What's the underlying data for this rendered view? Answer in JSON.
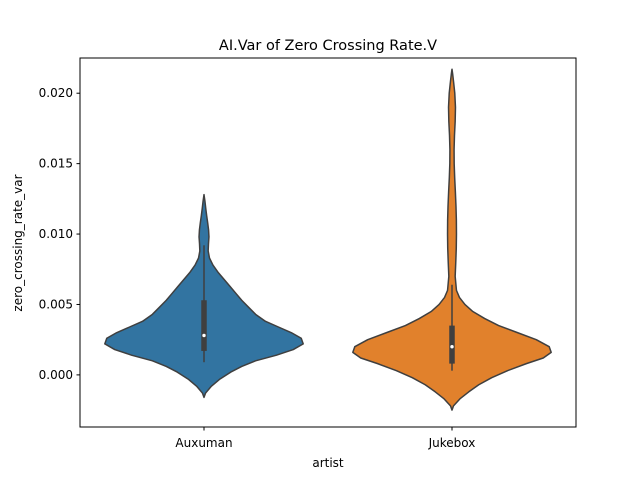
{
  "chart_data": {
    "type": "violin",
    "title": "AI.Var of Zero Crossing Rate.V",
    "xlabel": "artist",
    "ylabel": "zero_crossing_rate_var",
    "categories": [
      "Auxuman",
      "Jukebox"
    ],
    "ylim": [
      -0.0037,
      0.0225
    ],
    "yticks": [
      "0.000",
      "0.005",
      "0.010",
      "0.015",
      "0.020"
    ],
    "grid": false,
    "series": [
      {
        "category": "Auxuman",
        "color": "#3274a1",
        "min": 0.0009,
        "q1": 0.0017,
        "median": 0.0028,
        "q3": 0.0053,
        "max": 0.0092,
        "density": [
          [
            -0.0016,
            0.0
          ],
          [
            -0.0013,
            0.015
          ],
          [
            -0.0008,
            0.075
          ],
          [
            -0.0003,
            0.16
          ],
          [
            0.0002,
            0.27
          ],
          [
            0.0006,
            0.38
          ],
          [
            0.001,
            0.52
          ],
          [
            0.0014,
            0.73
          ],
          [
            0.0018,
            0.9
          ],
          [
            0.0022,
            1.0
          ],
          [
            0.0026,
            0.98
          ],
          [
            0.003,
            0.88
          ],
          [
            0.0034,
            0.75
          ],
          [
            0.0038,
            0.62
          ],
          [
            0.0043,
            0.52
          ],
          [
            0.0048,
            0.45
          ],
          [
            0.0053,
            0.38
          ],
          [
            0.0058,
            0.32
          ],
          [
            0.0063,
            0.26
          ],
          [
            0.0068,
            0.2
          ],
          [
            0.0073,
            0.14
          ],
          [
            0.0078,
            0.09
          ],
          [
            0.0083,
            0.055
          ],
          [
            0.0088,
            0.042
          ],
          [
            0.0093,
            0.045
          ],
          [
            0.0098,
            0.05
          ],
          [
            0.0103,
            0.046
          ],
          [
            0.0108,
            0.037
          ],
          [
            0.0113,
            0.027
          ],
          [
            0.0118,
            0.018
          ],
          [
            0.0123,
            0.01
          ],
          [
            0.0126,
            0.004
          ],
          [
            0.0128,
            0.0
          ]
        ]
      },
      {
        "category": "Jukebox",
        "color": "#e1812c",
        "min": 0.0003,
        "q1": 0.0008,
        "median": 0.002,
        "q3": 0.0035,
        "max": 0.0064,
        "density": [
          [
            -0.0025,
            0.0
          ],
          [
            -0.0022,
            0.015
          ],
          [
            -0.0017,
            0.08
          ],
          [
            -0.0012,
            0.17
          ],
          [
            -0.0007,
            0.27
          ],
          [
            -0.0002,
            0.4
          ],
          [
            0.0003,
            0.56
          ],
          [
            0.0008,
            0.75
          ],
          [
            0.0012,
            0.92
          ],
          [
            0.0016,
            1.0
          ],
          [
            0.002,
            0.98
          ],
          [
            0.0025,
            0.85
          ],
          [
            0.003,
            0.66
          ],
          [
            0.0035,
            0.47
          ],
          [
            0.004,
            0.33
          ],
          [
            0.0045,
            0.21
          ],
          [
            0.005,
            0.13
          ],
          [
            0.0055,
            0.075
          ],
          [
            0.006,
            0.045
          ],
          [
            0.007,
            0.032
          ],
          [
            0.008,
            0.038
          ],
          [
            0.009,
            0.043
          ],
          [
            0.01,
            0.045
          ],
          [
            0.011,
            0.044
          ],
          [
            0.012,
            0.04
          ],
          [
            0.013,
            0.034
          ],
          [
            0.014,
            0.027
          ],
          [
            0.015,
            0.022
          ],
          [
            0.016,
            0.021
          ],
          [
            0.017,
            0.025
          ],
          [
            0.018,
            0.032
          ],
          [
            0.019,
            0.035
          ],
          [
            0.02,
            0.028
          ],
          [
            0.0208,
            0.016
          ],
          [
            0.0214,
            0.006
          ],
          [
            0.0217,
            0.0
          ]
        ]
      }
    ]
  }
}
